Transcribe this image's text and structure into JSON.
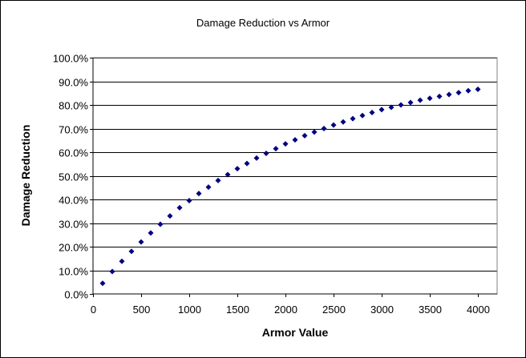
{
  "chart_data": {
    "type": "scatter",
    "title": "Damage Reduction vs Armor",
    "xlabel": "Armor Value",
    "ylabel": "Damage Reduction",
    "xlim": [
      0,
      4200
    ],
    "ylim": [
      0,
      100
    ],
    "x_ticks": [
      0,
      500,
      1000,
      1500,
      2000,
      2500,
      3000,
      3500,
      4000
    ],
    "x_tick_labels": [
      "0",
      "500",
      "1000",
      "1500",
      "2000",
      "2500",
      "3000",
      "3500",
      "4000"
    ],
    "y_ticks": [
      0,
      10,
      20,
      30,
      40,
      50,
      60,
      70,
      80,
      90,
      100
    ],
    "y_tick_labels": [
      "0.0%",
      "10.0%",
      "20.0%",
      "30.0%",
      "40.0%",
      "50.0%",
      "60.0%",
      "70.0%",
      "80.0%",
      "90.0%",
      "100.0%"
    ],
    "grid": "horizontal",
    "marker_color": "#000080",
    "series": [
      {
        "x": [
          100,
          200,
          300,
          400,
          500,
          600,
          700,
          800,
          900,
          1000,
          1100,
          1200,
          1300,
          1400,
          1500,
          1600,
          1700,
          1800,
          1900,
          2000,
          2100,
          2200,
          2300,
          2400,
          2500,
          2600,
          2700,
          2800,
          2900,
          3000,
          3100,
          3200,
          3300,
          3400,
          3500,
          3600,
          3700,
          3800,
          3900,
          4000
        ],
        "values": [
          4.5,
          9.5,
          13.8,
          18.0,
          22.0,
          25.8,
          29.5,
          33.0,
          36.5,
          39.5,
          42.5,
          45.2,
          48.0,
          50.5,
          53.0,
          55.2,
          57.5,
          59.5,
          61.5,
          63.5,
          65.2,
          67.0,
          68.5,
          70.0,
          71.5,
          72.8,
          74.2,
          75.5,
          76.8,
          78.0,
          79.0,
          80.0,
          81.0,
          82.0,
          82.8,
          83.6,
          84.4,
          85.2,
          86.0,
          86.6
        ]
      }
    ]
  }
}
